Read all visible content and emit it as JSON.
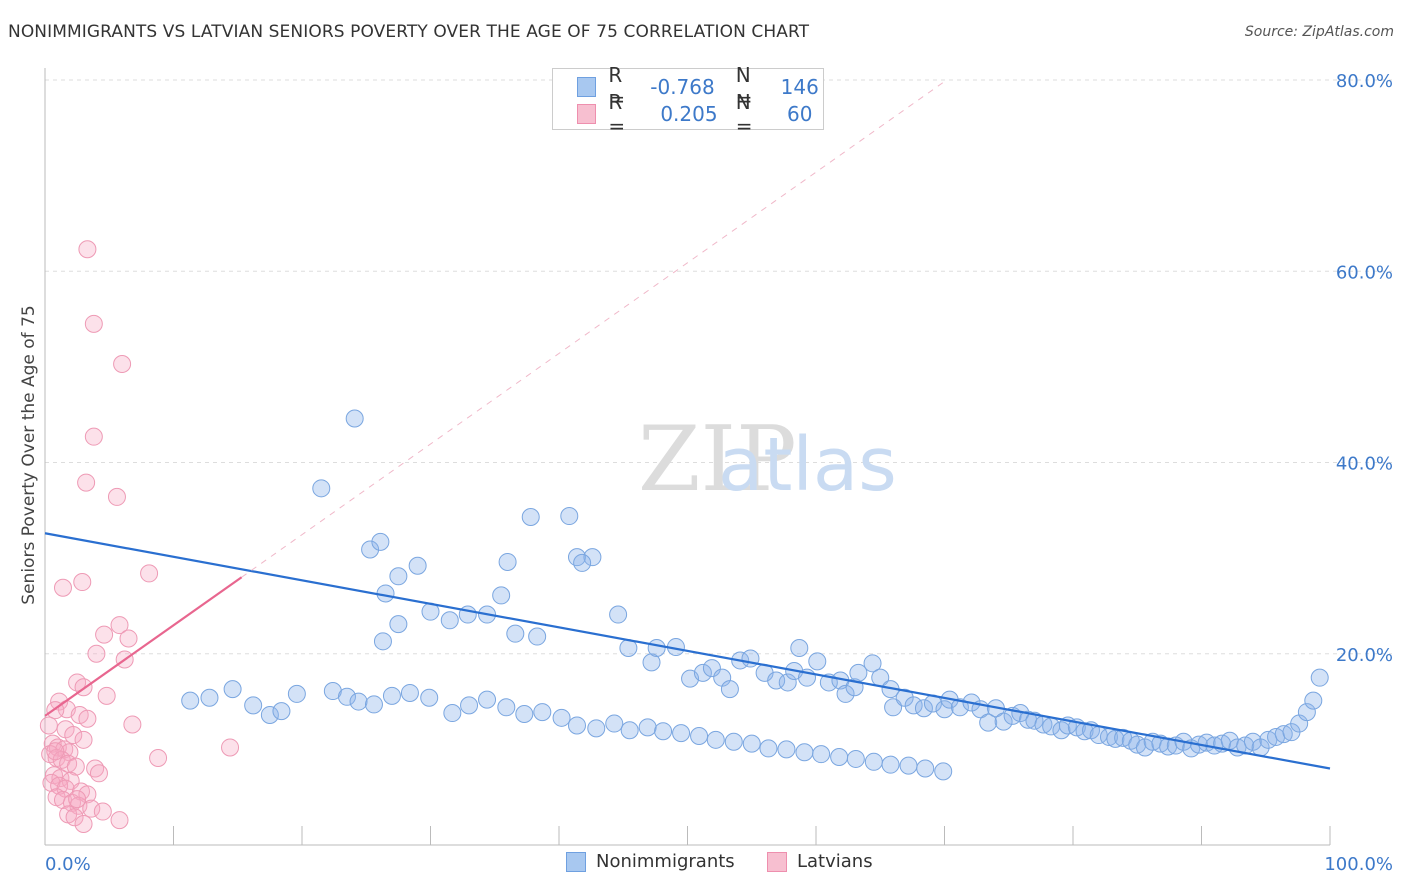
{
  "title": "NONIMMIGRANTS VS LATVIAN SENIORS POVERTY OVER THE AGE OF 75 CORRELATION CHART",
  "source": "Source: ZipAtlas.com",
  "watermark": {
    "zip": "ZIP",
    "atlas": "atlas"
  },
  "legend_stats": [
    {
      "r_label": "R =",
      "r_value": "-0.768",
      "n_label": "N =",
      "n_value": "146",
      "color": "#a8c8f0",
      "border": "#6fa0e0"
    },
    {
      "r_label": "R =",
      "r_value": "0.205",
      "n_label": "N =",
      "n_value": "60",
      "color": "#f7bfd0",
      "border": "#ee8fae"
    }
  ],
  "colors": {
    "blue_fill": "rgba(140,180,235,0.38)",
    "blue_stroke": "#7aa6e0",
    "blue_line": "#2a6fd0",
    "pink_fill": "rgba(245,170,195,0.35)",
    "pink_stroke": "#ee9ab5",
    "pink_line": "#e8668f",
    "grid": "#dddddd",
    "tick_label": "#3d79c9"
  },
  "chart_data": {
    "type": "scatter",
    "title": "NONIMMIGRANTS VS LATVIAN SENIORS POVERTY OVER THE AGE OF 75 CORRELATION CHART",
    "xlabel": "",
    "ylabel": "Seniors Poverty Over the Age of 75",
    "xlim": [
      0,
      100
    ],
    "ylim": [
      0,
      80
    ],
    "x_tick_labels": [
      "0.0%",
      "100.0%"
    ],
    "y_ticks": [
      20,
      40,
      60,
      80
    ],
    "y_tick_labels": [
      "20.0%",
      "40.0%",
      "60.0%",
      "80.0%"
    ],
    "grid": true,
    "legend_position": "bottom-center",
    "series": [
      {
        "name": "Nonimmigrants",
        "color": "#a8c8f0",
        "trend": {
          "x": [
            0,
            100
          ],
          "y": [
            32.6,
            8.0
          ]
        },
        "points": [
          [
            24.1,
            44.6
          ],
          [
            21.5,
            37.3
          ],
          [
            37.8,
            34.3
          ],
          [
            40.8,
            34.4
          ],
          [
            25.3,
            30.9
          ],
          [
            26.1,
            31.7
          ],
          [
            27.5,
            28.1
          ],
          [
            36.0,
            29.6
          ],
          [
            41.4,
            30.1
          ],
          [
            42.6,
            30.1
          ],
          [
            29.0,
            29.2
          ],
          [
            26.5,
            26.3
          ],
          [
            41.8,
            29.5
          ],
          [
            35.5,
            26.1
          ],
          [
            26.3,
            21.3
          ],
          [
            27.5,
            23.1
          ],
          [
            30.0,
            24.4
          ],
          [
            31.5,
            23.5
          ],
          [
            32.9,
            24.1
          ],
          [
            34.4,
            24.1
          ],
          [
            36.6,
            22.1
          ],
          [
            38.3,
            21.8
          ],
          [
            44.6,
            24.1
          ],
          [
            45.4,
            20.6
          ],
          [
            47.2,
            19.1
          ],
          [
            47.6,
            20.6
          ],
          [
            49.1,
            20.7
          ],
          [
            50.2,
            17.4
          ],
          [
            51.2,
            18.0
          ],
          [
            51.9,
            18.5
          ],
          [
            52.7,
            17.5
          ],
          [
            53.3,
            16.3
          ],
          [
            54.1,
            19.3
          ],
          [
            54.9,
            19.5
          ],
          [
            56.0,
            18.0
          ],
          [
            56.9,
            17.2
          ],
          [
            57.8,
            17.0
          ],
          [
            58.3,
            18.2
          ],
          [
            58.7,
            20.6
          ],
          [
            59.3,
            17.5
          ],
          [
            60.1,
            19.2
          ],
          [
            61.0,
            17.0
          ],
          [
            61.9,
            17.2
          ],
          [
            62.3,
            15.8
          ],
          [
            63.0,
            16.5
          ],
          [
            63.3,
            18.0
          ],
          [
            64.4,
            19.0
          ],
          [
            65.0,
            17.5
          ],
          [
            65.8,
            16.3
          ],
          [
            66.0,
            14.4
          ],
          [
            66.9,
            15.4
          ],
          [
            67.6,
            14.6
          ],
          [
            68.4,
            14.3
          ],
          [
            69.1,
            14.8
          ],
          [
            70.0,
            14.2
          ],
          [
            70.4,
            15.2
          ],
          [
            71.2,
            14.4
          ],
          [
            72.1,
            14.9
          ],
          [
            72.8,
            14.2
          ],
          [
            73.4,
            12.8
          ],
          [
            74.0,
            14.3
          ],
          [
            74.6,
            12.9
          ],
          [
            75.3,
            13.5
          ],
          [
            75.9,
            13.8
          ],
          [
            76.5,
            13.1
          ],
          [
            77.0,
            13.0
          ],
          [
            77.7,
            12.6
          ],
          [
            78.3,
            12.4
          ],
          [
            79.1,
            12.0
          ],
          [
            79.6,
            12.5
          ],
          [
            80.3,
            12.3
          ],
          [
            80.9,
            11.9
          ],
          [
            81.4,
            12.0
          ],
          [
            82.0,
            11.5
          ],
          [
            82.8,
            11.3
          ],
          [
            83.3,
            11.1
          ],
          [
            83.9,
            11.2
          ],
          [
            84.5,
            10.9
          ],
          [
            85.0,
            10.5
          ],
          [
            85.6,
            10.2
          ],
          [
            86.2,
            10.8
          ],
          [
            86.8,
            10.6
          ],
          [
            87.4,
            10.3
          ],
          [
            88.0,
            10.4
          ],
          [
            88.6,
            10.8
          ],
          [
            89.2,
            10.1
          ],
          [
            89.8,
            10.5
          ],
          [
            90.4,
            10.7
          ],
          [
            91.0,
            10.4
          ],
          [
            91.6,
            10.6
          ],
          [
            92.2,
            10.9
          ],
          [
            92.8,
            10.2
          ],
          [
            93.4,
            10.4
          ],
          [
            94.0,
            10.8
          ],
          [
            94.6,
            10.2
          ],
          [
            95.2,
            11.0
          ],
          [
            95.8,
            11.3
          ],
          [
            96.4,
            11.6
          ],
          [
            97.0,
            11.8
          ],
          [
            97.6,
            12.7
          ],
          [
            98.2,
            13.9
          ],
          [
            98.7,
            15.1
          ],
          [
            99.2,
            17.5
          ],
          [
            11.3,
            15.1
          ],
          [
            12.8,
            15.4
          ],
          [
            14.6,
            16.3
          ],
          [
            16.2,
            14.6
          ],
          [
            17.5,
            13.6
          ],
          [
            18.4,
            14.0
          ],
          [
            19.6,
            15.8
          ],
          [
            22.4,
            16.1
          ],
          [
            23.5,
            15.5
          ],
          [
            24.4,
            15.0
          ],
          [
            25.6,
            14.7
          ],
          [
            27.0,
            15.6
          ],
          [
            28.4,
            15.9
          ],
          [
            29.9,
            15.4
          ],
          [
            31.7,
            13.8
          ],
          [
            33.0,
            14.6
          ],
          [
            34.4,
            15.2
          ],
          [
            35.9,
            14.4
          ],
          [
            37.3,
            13.7
          ],
          [
            38.7,
            13.9
          ],
          [
            40.2,
            13.3
          ],
          [
            41.4,
            12.5
          ],
          [
            42.9,
            12.2
          ],
          [
            44.3,
            12.7
          ],
          [
            45.5,
            12.0
          ],
          [
            46.9,
            12.3
          ],
          [
            48.1,
            11.9
          ],
          [
            49.5,
            11.7
          ],
          [
            50.9,
            11.4
          ],
          [
            52.2,
            11.0
          ],
          [
            53.6,
            10.8
          ],
          [
            55.0,
            10.6
          ],
          [
            56.3,
            10.1
          ],
          [
            57.7,
            10.0
          ],
          [
            59.1,
            9.7
          ],
          [
            60.4,
            9.5
          ],
          [
            61.8,
            9.2
          ],
          [
            63.1,
            9.0
          ],
          [
            64.5,
            8.7
          ],
          [
            65.8,
            8.4
          ],
          [
            67.2,
            8.3
          ],
          [
            68.5,
            8.0
          ],
          [
            69.9,
            7.7
          ]
        ]
      },
      {
        "name": "Latvians",
        "color": "#f7bfd0",
        "trend": {
          "x": [
            0,
            15.3
          ],
          "y": [
            13.5,
            28.0
          ]
        },
        "points": [
          [
            3.3,
            62.3
          ],
          [
            3.8,
            54.5
          ],
          [
            6.0,
            50.3
          ],
          [
            3.8,
            42.7
          ],
          [
            3.2,
            37.9
          ],
          [
            5.6,
            36.4
          ],
          [
            2.9,
            27.5
          ],
          [
            1.4,
            26.9
          ],
          [
            8.1,
            28.4
          ],
          [
            4.6,
            22.0
          ],
          [
            5.8,
            23.0
          ],
          [
            6.5,
            21.6
          ],
          [
            4.0,
            20.0
          ],
          [
            6.2,
            19.4
          ],
          [
            2.5,
            17.0
          ],
          [
            3.0,
            16.5
          ],
          [
            4.8,
            15.6
          ],
          [
            1.1,
            15.0
          ],
          [
            1.7,
            14.2
          ],
          [
            0.8,
            14.1
          ],
          [
            2.7,
            13.6
          ],
          [
            3.3,
            13.2
          ],
          [
            0.3,
            12.5
          ],
          [
            1.6,
            12.1
          ],
          [
            2.2,
            11.5
          ],
          [
            3.0,
            11.0
          ],
          [
            0.6,
            10.6
          ],
          [
            1.0,
            10.2
          ],
          [
            1.5,
            10.0
          ],
          [
            1.9,
            9.7
          ],
          [
            0.4,
            9.5
          ],
          [
            0.9,
            9.1
          ],
          [
            1.3,
            8.9
          ],
          [
            1.8,
            8.5
          ],
          [
            2.4,
            8.2
          ],
          [
            3.9,
            8.0
          ],
          [
            4.2,
            7.5
          ],
          [
            0.7,
            7.3
          ],
          [
            1.2,
            7.0
          ],
          [
            2.0,
            6.7
          ],
          [
            0.5,
            6.5
          ],
          [
            1.1,
            6.2
          ],
          [
            1.6,
            5.9
          ],
          [
            2.8,
            5.6
          ],
          [
            3.3,
            5.3
          ],
          [
            0.9,
            5.0
          ],
          [
            1.4,
            4.7
          ],
          [
            2.1,
            4.4
          ],
          [
            2.6,
            4.1
          ],
          [
            3.6,
            3.8
          ],
          [
            4.5,
            3.5
          ],
          [
            1.8,
            3.2
          ],
          [
            2.3,
            2.9
          ],
          [
            5.8,
            2.6
          ],
          [
            3.0,
            2.2
          ],
          [
            0.8,
            9.8
          ],
          [
            2.5,
            4.8
          ],
          [
            6.8,
            12.6
          ],
          [
            14.4,
            10.2
          ],
          [
            8.8,
            9.1
          ]
        ]
      }
    ]
  }
}
